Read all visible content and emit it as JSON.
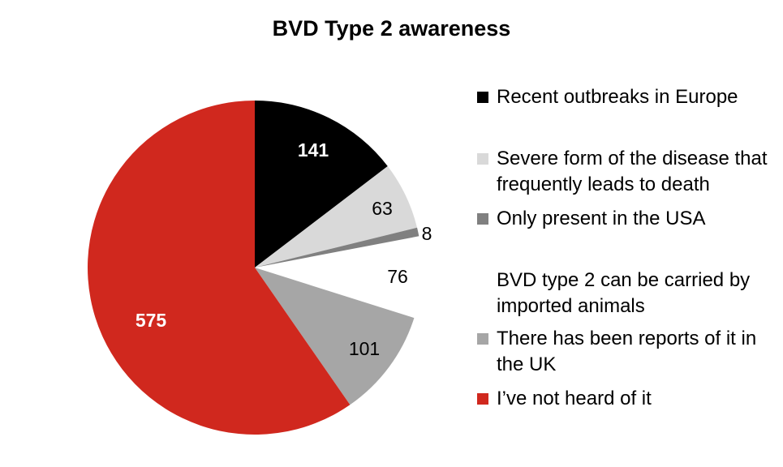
{
  "chart_data": {
    "type": "pie",
    "title": "BVD Type 2 awareness",
    "slices": [
      {
        "label": "Recent outbreaks in Europe",
        "value": 141,
        "color": "#000000",
        "label_color": "#ffffff",
        "bold": true
      },
      {
        "label": "Severe form of the disease that frequently leads to death",
        "value": 63,
        "color": "#d9d9d9",
        "label_color": "#000000",
        "bold": false
      },
      {
        "label": "Only present in the USA",
        "value": 8,
        "color": "#808080",
        "label_color": "#000000",
        "bold": false
      },
      {
        "label": "BVD type 2 can be carried by imported animals",
        "value": 76,
        "color": "#ffffff",
        "label_color": "#000000",
        "bold": false
      },
      {
        "label": "There has been reports of it in the UK",
        "value": 101,
        "color": "#a6a6a6",
        "label_color": "#000000",
        "bold": false
      },
      {
        "label": "I’ve not heard of it",
        "value": 575,
        "color": "#d0281e",
        "label_color": "#ffffff",
        "bold": true
      }
    ],
    "legend": "right"
  }
}
